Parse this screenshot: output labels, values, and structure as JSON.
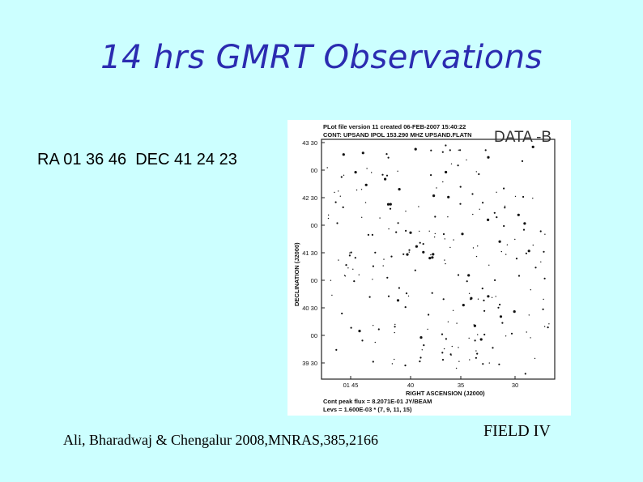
{
  "slide": {
    "title": "14 hrs GMRT Observations",
    "coordinates": "RA 01 36 46  DEC 41 24 23",
    "citation": "Ali, Bharadwaj & Chengalur 2008,MNRAS,385,2166",
    "field_label": "FIELD IV",
    "data_label": "DATA -B"
  },
  "plot": {
    "header_line1": "PLot file version 11  created 06-FEB-2007 15:40:22",
    "header_line2": "CONT: UPSAND  IPOL  153.290 MHZ  UPSAND.FLATN",
    "y_axis_label": "DECLINATION (J2000)",
    "x_axis_label": "RIGHT ASCENSION (J2000)",
    "y_ticks": [
      "43 30",
      "00",
      "42 30",
      "00",
      "41 30",
      "00",
      "40 30",
      "00",
      "39 30"
    ],
    "x_ticks": [
      "01 45",
      "40",
      "35",
      "30"
    ],
    "footer_line1": "Cont peak flux =  8.2071E-01 JY/BEAM",
    "footer_line2": "Levs = 1.600E-03 * (7, 9, 11, 15)"
  }
}
